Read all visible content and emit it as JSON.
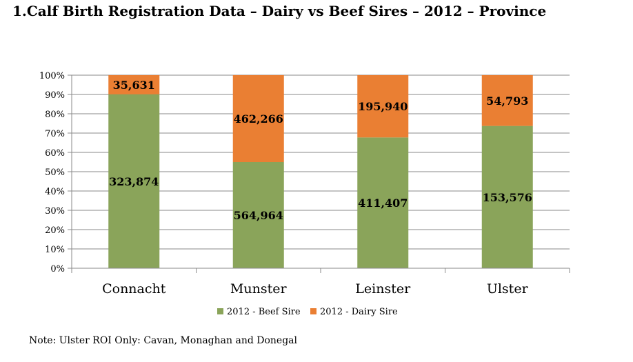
{
  "title": "1.Calf Birth Registration Data – Dairy vs Beef Sires – 2012 – Province",
  "note": "Note: Ulster ROI Only: Cavan, Monaghan and Donegal",
  "colors": {
    "beef": "#8aa45a",
    "dairy": "#ea7f33",
    "grid": "#8a8a8a",
    "axis": "#8a8a8a"
  },
  "chart_data": {
    "type": "bar",
    "stacked": true,
    "normalized": "percent",
    "title": "1.Calf Birth Registration Data – Dairy vs Beef Sires – 2012 – Province",
    "categories": [
      "Connacht",
      "Munster",
      "Leinster",
      "Ulster"
    ],
    "series": [
      {
        "name": "2012 - Beef Sire",
        "values": [
          323874,
          564964,
          411407,
          153576
        ],
        "labels": [
          "323,874",
          "564,964",
          "411,407",
          "153,576"
        ]
      },
      {
        "name": "2012 - Dairy Sire",
        "values": [
          35631,
          462266,
          195940,
          54793
        ],
        "labels": [
          "35,631",
          "462,266",
          "195,940",
          "54,793"
        ]
      }
    ],
    "yticks": [
      "0%",
      "10%",
      "20%",
      "30%",
      "40%",
      "50%",
      "60%",
      "70%",
      "80%",
      "90%",
      "100%"
    ],
    "ylim": [
      0,
      100
    ],
    "grid": true,
    "legend": "bottom",
    "xlabel": "",
    "ylabel": ""
  }
}
